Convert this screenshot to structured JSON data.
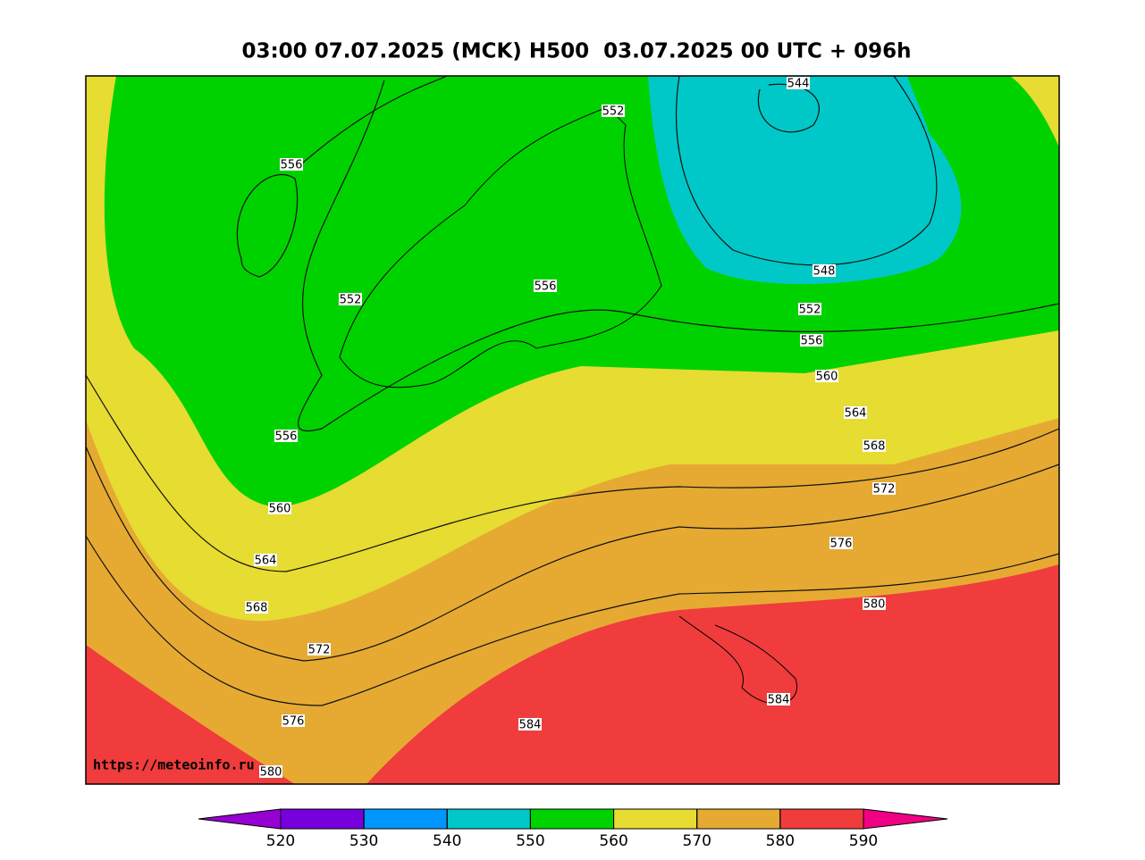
{
  "title": "03:00 07.07.2025 (MCK) H500  03.07.2025 00 UTC + 096h",
  "watermark": "https://meteoinfo.ru",
  "contour_labels": [
    544,
    552,
    556,
    552,
    556,
    548,
    552,
    556,
    560,
    564,
    568,
    572,
    576,
    580,
    584,
    584,
    556,
    560,
    564,
    568,
    572,
    576,
    580
  ],
  "colorbar": {
    "ticks": [
      520,
      530,
      540,
      550,
      560,
      570,
      580,
      590
    ],
    "colors": [
      "#9600d2",
      "#7800dc",
      "#0096ff",
      "#00c8c8",
      "#00d200",
      "#e6dc32",
      "#e6aa32",
      "#f03c3c",
      "#f00082"
    ]
  }
}
